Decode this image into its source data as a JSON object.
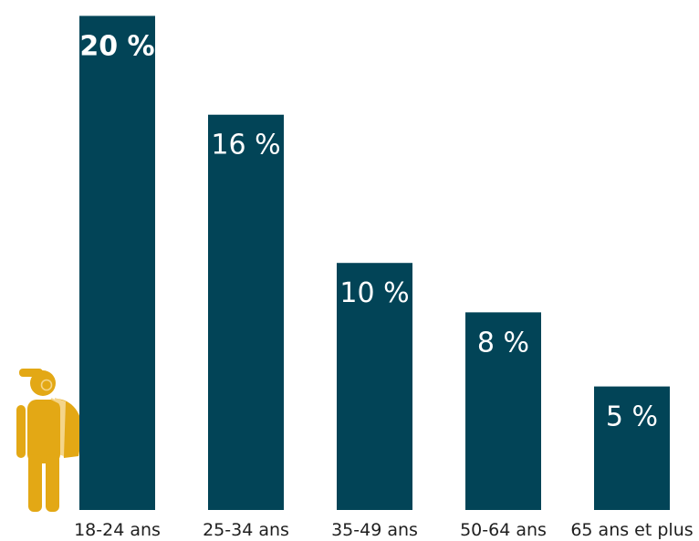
{
  "colors": {
    "bar": "#024457",
    "bar_text": "#ffffff",
    "figure": "#e3a815",
    "figure_accent": "#f4d58a",
    "axis_text": "#1f1f1f"
  },
  "icons": {
    "person": "person-with-backpack-and-headphones-icon"
  },
  "chart_data": {
    "type": "bar",
    "categories": [
      "18-24 ans",
      "25-34 ans",
      "35-49 ans",
      "50-64 ans",
      "65 ans et plus"
    ],
    "values": [
      20,
      16,
      10,
      8,
      5
    ],
    "value_labels": [
      "20 %",
      "16 %",
      "10 %",
      "8 %",
      "5 %"
    ],
    "highlighted_index": 0,
    "title": "",
    "xlabel": "",
    "ylabel": "",
    "ylim": [
      0,
      20.2
    ],
    "grid": false,
    "legend": "none"
  }
}
